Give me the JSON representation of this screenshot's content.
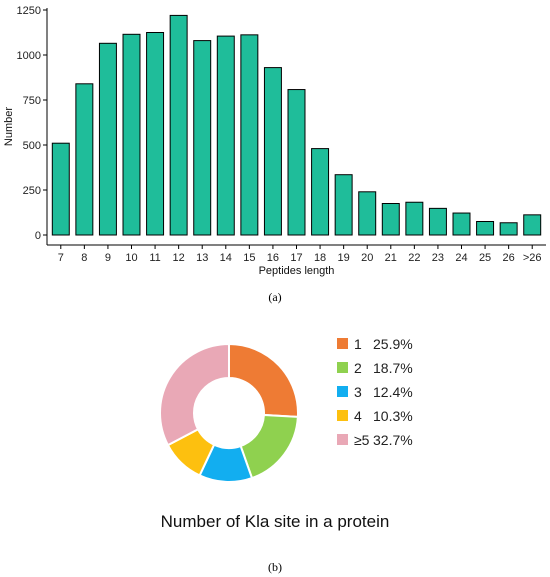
{
  "chart_data": [
    {
      "type": "bar",
      "categories": [
        "7",
        "8",
        "9",
        "10",
        "11",
        "12",
        "13",
        "14",
        "15",
        "16",
        "17",
        "18",
        "19",
        "20",
        "21",
        "22",
        "23",
        "24",
        "25",
        "26",
        ">26"
      ],
      "values": [
        510,
        840,
        1065,
        1115,
        1125,
        1220,
        1080,
        1105,
        1112,
        930,
        808,
        480,
        335,
        240,
        175,
        182,
        148,
        122,
        75,
        68,
        112
      ],
      "xlabel": "Peptides length",
      "ylabel": "Number",
      "yticks": [
        0,
        250,
        500,
        750,
        1000,
        1250
      ],
      "ytick_labels": [
        "0",
        "250",
        "500",
        "750",
        "1000",
        "1250"
      ],
      "ylim": [
        0,
        1250
      ],
      "grid": false,
      "bar_color": "#1fbd9a",
      "bar_edge_color": "#000000"
    },
    {
      "type": "pie",
      "style": "donut",
      "title": "Number of Kla site in a protein",
      "legend_placement": "right",
      "slices": [
        {
          "label": "1",
          "value": 25.9,
          "value_label": "25.9%",
          "color": "#ee7b34"
        },
        {
          "label": "2",
          "value": 18.7,
          "value_label": "18.7%",
          "color": "#8fd14f"
        },
        {
          "label": "3",
          "value": 12.4,
          "value_label": "12.4%",
          "color": "#12aef0"
        },
        {
          "label": "4",
          "value": 10.3,
          "value_label": "10.3%",
          "color": "#fdc00f"
        },
        {
          "label": "≥5",
          "value": 32.7,
          "value_label": "32.7%",
          "color": "#e9a8b6"
        }
      ]
    }
  ],
  "panel_labels": {
    "a": "(a)",
    "b": "(b)"
  }
}
